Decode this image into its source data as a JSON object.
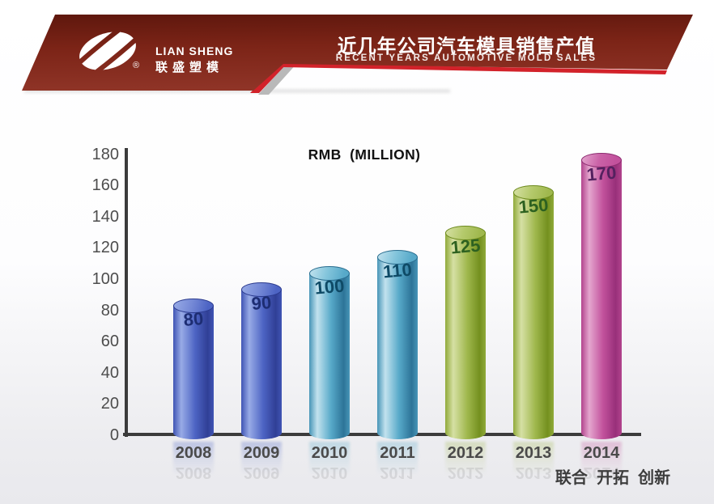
{
  "header": {
    "logo": {
      "icon": "lian-sheng-swirl-icon",
      "company_en": "LIAN SHENG",
      "company_cn": "联盛塑模",
      "registered": "®"
    },
    "title_cn": "近几年公司汽车模具销售产值",
    "subtitle_en": "RECENT YEARS AUTOMOTIVE MOLD SALES",
    "colors": {
      "banner_top": "#5e170d",
      "banner_mid": "#7c2417",
      "banner_bottom": "#8f3427",
      "accent_red": "#d2222a",
      "accent_gray": "#b9b9b9"
    }
  },
  "chart_data": {
    "type": "bar",
    "style": "3d-cylinder",
    "title": "RMB  (MILLION)",
    "categories": [
      "2008",
      "2009",
      "2010",
      "2011",
      "2012",
      "2013",
      "2014"
    ],
    "values": [
      80,
      90,
      100,
      110,
      125,
      150,
      170
    ],
    "series": [
      {
        "name": "automotive mold sales",
        "values": [
          80,
          90,
          100,
          110,
          125,
          150,
          170
        ]
      }
    ],
    "xlabel": "",
    "ylabel": "",
    "ylim": [
      0,
      180
    ],
    "yticks": [
      0,
      20,
      40,
      60,
      80,
      100,
      120,
      140,
      160,
      180
    ],
    "grid": false,
    "legend": "none",
    "axis_color": "#3b3b3b",
    "tick_label_color": "#4d4d4d",
    "palette_index": [
      0,
      0,
      1,
      1,
      2,
      2,
      3
    ],
    "palettes": [
      {
        "name": "blue",
        "mid": "#4d64c4",
        "light": "#98abe6",
        "dark": "#303f96",
        "edge": "#3f54b4",
        "top": "#7589d6",
        "rim": "#2b3a8e",
        "label": "#1d2d73"
      },
      {
        "name": "cyan",
        "mid": "#57a9c9",
        "light": "#c2e2ee",
        "dark": "#2d7498",
        "edge": "#4795b7",
        "top": "#82c4db",
        "rim": "#2a6d8f",
        "label": "#0e4a66"
      },
      {
        "name": "green",
        "mid": "#a0b84e",
        "light": "#d6e0a4",
        "dark": "#74901f",
        "edge": "#90aa3a",
        "top": "#b4c96b",
        "rim": "#6d8a1d",
        "label": "#2d6120"
      },
      {
        "name": "magenta",
        "mid": "#c2519c",
        "light": "#e4a6ce",
        "dark": "#98307a",
        "edge": "#b2438d",
        "top": "#ca62a7",
        "rim": "#8c2c70",
        "label": "#54215f"
      }
    ]
  },
  "footer": {
    "slogan": "联合  开拓  创新"
  }
}
